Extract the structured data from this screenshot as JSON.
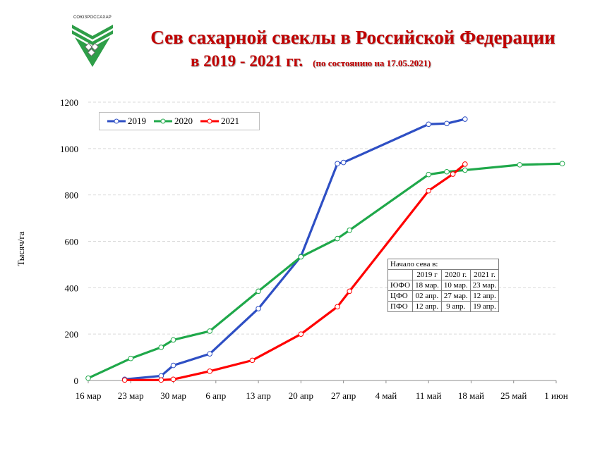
{
  "logo": {
    "caption": "СОЮЗРОССАХАР",
    "icon": "soyuzrossakhar-logo",
    "colors": [
      "#2e9e48",
      "#6b6b6b"
    ]
  },
  "title": {
    "line1": "Сев сахарной свеклы в Российской Федерации",
    "line2": "в 2019 - 2021 гг.",
    "subtitle": "(по состоянию на 17.05.2021)",
    "color": "#c00000"
  },
  "chart_data": {
    "type": "line",
    "ylabel": "Тысяч/га",
    "xlabel": "",
    "ylim": [
      0,
      1200
    ],
    "yticks": [
      0,
      200,
      400,
      600,
      800,
      1000,
      1200
    ],
    "x_tick_labels": [
      "16 мар",
      "23 мар",
      "30 мар",
      "6 апр",
      "13 апр",
      "20 апр",
      "27 апр",
      "4 май",
      "11 май",
      "18 май",
      "25 май",
      "1 июн"
    ],
    "grid": "horizontal dashed",
    "legend_position": "top-left",
    "series": [
      {
        "name": "2019",
        "color": "#2e4fc4",
        "points": [
          [
            "22 мар",
            5
          ],
          [
            "28 мар",
            20
          ],
          [
            "30 мар",
            65
          ],
          [
            "5 апр",
            115
          ],
          [
            "13 апр",
            310
          ],
          [
            "20 апр",
            535
          ],
          [
            "26 апр",
            935
          ],
          [
            "27 апр",
            940
          ],
          [
            "11 май",
            1105
          ],
          [
            "14 май",
            1108
          ],
          [
            "17 май",
            1127
          ]
        ]
      },
      {
        "name": "2020",
        "color": "#1fa84a",
        "points": [
          [
            "16 мар",
            10
          ],
          [
            "23 мар",
            95
          ],
          [
            "28 мар",
            143
          ],
          [
            "30 мар",
            175
          ],
          [
            "5 апр",
            213
          ],
          [
            "13 апр",
            385
          ],
          [
            "20 апр",
            533
          ],
          [
            "26 апр",
            612
          ],
          [
            "28 апр",
            648
          ],
          [
            "11 май",
            888
          ],
          [
            "14 май",
            900
          ],
          [
            "17 май",
            907
          ],
          [
            "26 май",
            930
          ],
          [
            "2 июн",
            935
          ]
        ]
      },
      {
        "name": "2021",
        "color": "#ff0000",
        "points": [
          [
            "22 мар",
            2
          ],
          [
            "28 мар",
            2
          ],
          [
            "30 мар",
            5
          ],
          [
            "5 апр",
            40
          ],
          [
            "12 апр",
            87
          ],
          [
            "20 апр",
            200
          ],
          [
            "26 апр",
            318
          ],
          [
            "28 апр",
            385
          ],
          [
            "11 май",
            818
          ],
          [
            "15 май",
            890
          ],
          [
            "17 май",
            933
          ]
        ]
      }
    ]
  },
  "sowing_table": {
    "title": "Начало сева в:",
    "headers": [
      "",
      "2019 г",
      "2020  г.",
      "2021 г."
    ],
    "rows": [
      [
        "ЮФО",
        "18 мар.",
        "10 мар.",
        "23 мар."
      ],
      [
        "ЦФО",
        "02 апр.",
        "27 мар.",
        "12 апр."
      ],
      [
        "ПФО",
        "12 апр.",
        "9 апр.",
        "19 апр."
      ]
    ]
  }
}
